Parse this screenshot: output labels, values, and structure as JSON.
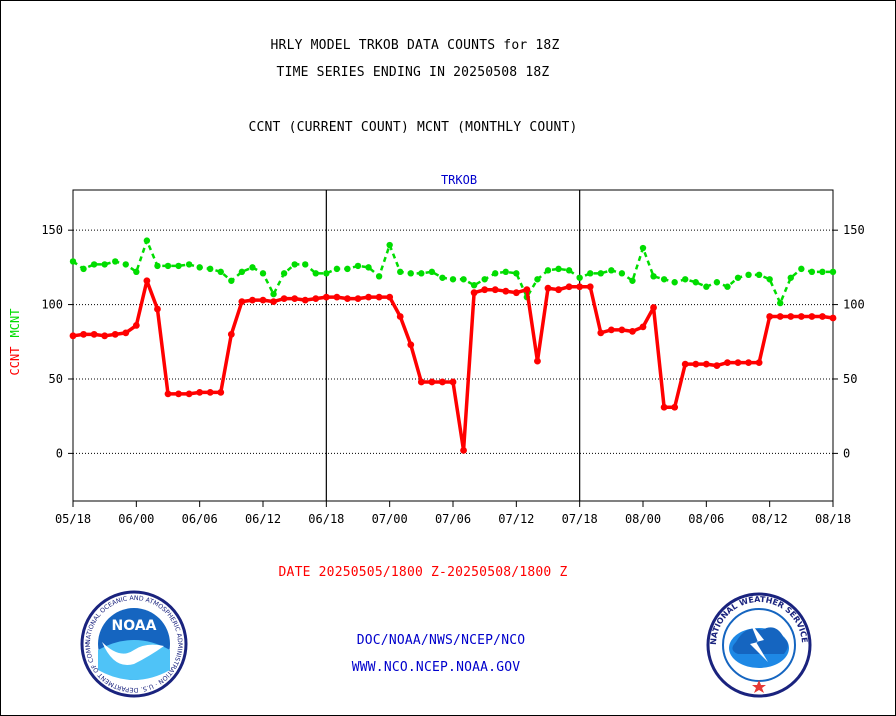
{
  "header": {
    "title_line1": "HRLY MODEL TRKOB DATA COUNTS for 18Z",
    "title_line2": "TIME SERIES ENDING IN 20250508 18Z",
    "subtitle": "CCNT (CURRENT COUNT) MCNT (MONTHLY COUNT)"
  },
  "footer": {
    "date_range": "DATE 20250505/1800 Z-20250508/1800 Z",
    "link1": "DOC/NOAA/NWS/NCEP/NCO",
    "link2": "WWW.NCO.NCEP.NOAA.GOV"
  },
  "logos": {
    "noaa_text": "NOAA",
    "noaa_ring": "NATIONAL OCEANIC AND ATMOSPHERIC ADMINISTRATION · U.S. DEPARTMENT OF COMMERCE",
    "nws_ring": "NATIONAL WEATHER SERVICE"
  },
  "colors": {
    "ccnt": "#ff0000",
    "mcnt": "#00dd00",
    "title": "#0000cc",
    "axis": "#000000",
    "date_text": "#ff0000",
    "link_text": "#0000cc"
  },
  "chart_data": {
    "type": "line",
    "title": "TRKOB",
    "ylabel_ccnt": "CCNT",
    "ylabel_mcnt": "MCNT",
    "ylim": [
      -32,
      177
    ],
    "yticks": [
      0,
      50,
      100,
      150
    ],
    "grid": true,
    "x": [
      0,
      1,
      2,
      3,
      4,
      5,
      6,
      7,
      8,
      9,
      10,
      11,
      12,
      13,
      14,
      15,
      16,
      17,
      18,
      19,
      20,
      21,
      22,
      23,
      24,
      25,
      26,
      27,
      28,
      29,
      30,
      31,
      32,
      33,
      34,
      35,
      36,
      37,
      38,
      39,
      40,
      41,
      42,
      43,
      44,
      45,
      46,
      47,
      48,
      49,
      50,
      51,
      52,
      53,
      54,
      55,
      56,
      57,
      58,
      59,
      60,
      61,
      62,
      63,
      64,
      65,
      66,
      67,
      68,
      69,
      70,
      71,
      72
    ],
    "xlim": [
      0,
      72
    ],
    "xticks": [
      0,
      6,
      12,
      18,
      24,
      30,
      36,
      42,
      48,
      54,
      60,
      66,
      72
    ],
    "xtick_labels": [
      "05/18",
      "06/00",
      "06/06",
      "06/12",
      "06/18",
      "07/00",
      "07/06",
      "07/12",
      "07/18",
      "08/00",
      "08/06",
      "08/12",
      "08/18"
    ],
    "day_dividers": [
      24,
      48
    ],
    "series": [
      {
        "name": "CCNT",
        "values": [
          79,
          80,
          80,
          79,
          80,
          81,
          86,
          116,
          97,
          40,
          40,
          40,
          41,
          41,
          41,
          80,
          102,
          103,
          103,
          102,
          104,
          104,
          103,
          104,
          105,
          105,
          104,
          104,
          105,
          105,
          105,
          92,
          73,
          48,
          48,
          48,
          48,
          2,
          108,
          110,
          110,
          109,
          108,
          110,
          62,
          111,
          110,
          112,
          112,
          112,
          81,
          83,
          83,
          82,
          85,
          98,
          31,
          31,
          60,
          60,
          60,
          59,
          61,
          61,
          61,
          61,
          92,
          92,
          92,
          92,
          92,
          92,
          91
        ]
      },
      {
        "name": "MCNT",
        "values": [
          129,
          124,
          127,
          127,
          129,
          127,
          122,
          143,
          126,
          126,
          126,
          127,
          125,
          124,
          122,
          116,
          122,
          125,
          121,
          107,
          121,
          127,
          127,
          121,
          121,
          124,
          124,
          126,
          125,
          119,
          140,
          122,
          121,
          121,
          122,
          118,
          117,
          117,
          113,
          117,
          121,
          122,
          121,
          105,
          117,
          123,
          124,
          123,
          118,
          121,
          121,
          123,
          121,
          116,
          138,
          119,
          117,
          115,
          117,
          115,
          112,
          115,
          112,
          118,
          120,
          120,
          117,
          101,
          118,
          124,
          122,
          122,
          122
        ]
      }
    ]
  }
}
